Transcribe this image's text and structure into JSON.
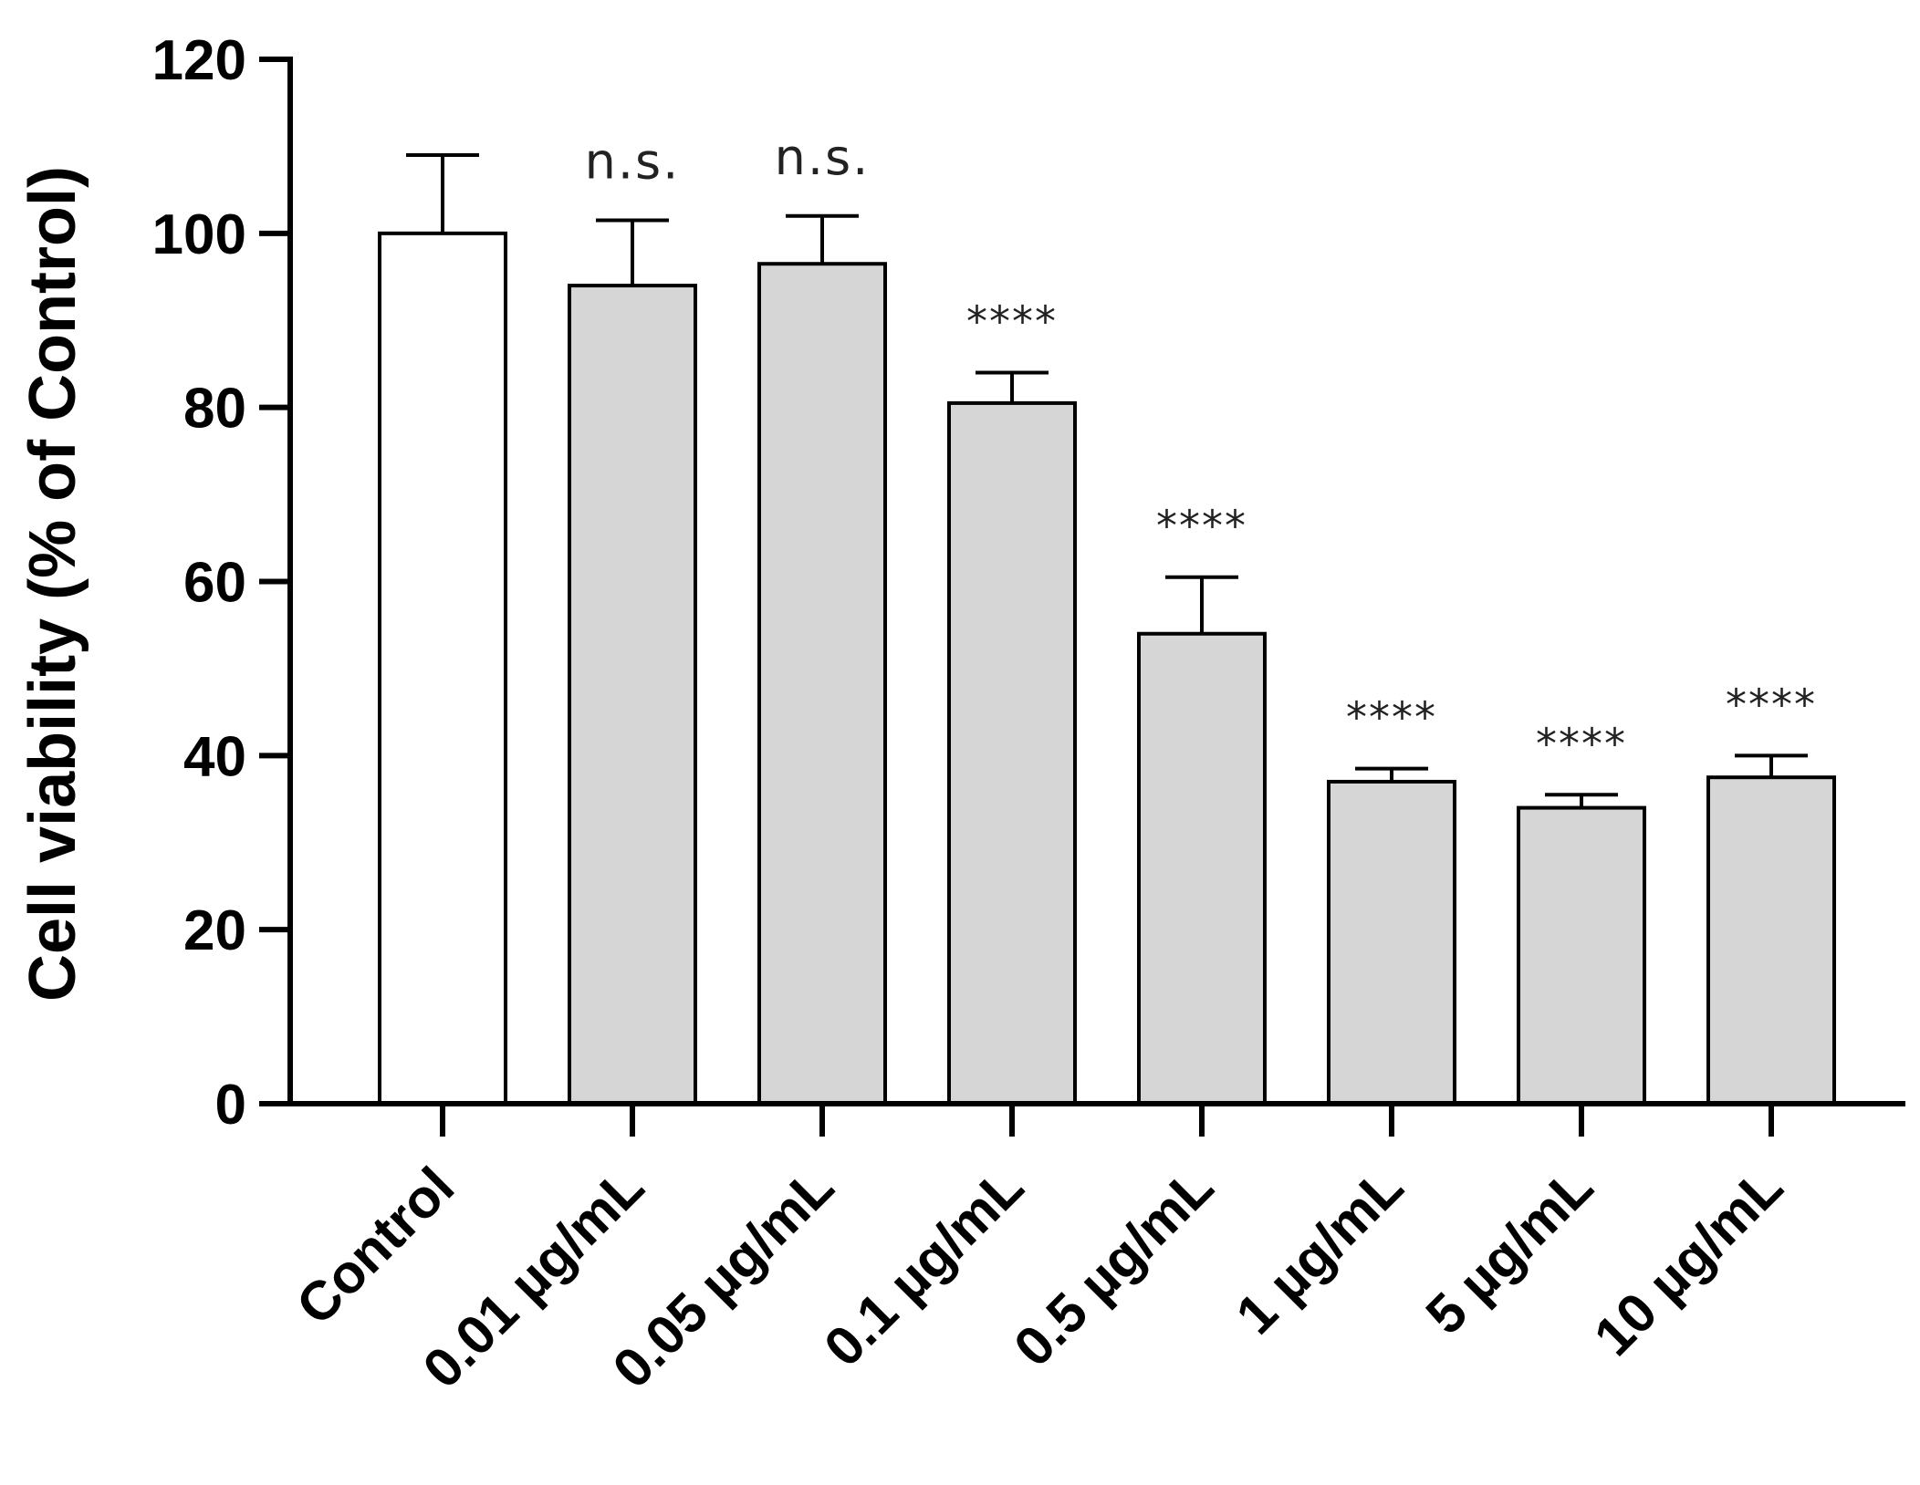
{
  "chart_data": {
    "type": "bar",
    "ylabel": "Cell viability (% of Control)",
    "xlabel": "",
    "ylim": [
      0,
      120
    ],
    "yticks": [
      0,
      20,
      40,
      60,
      80,
      100,
      120
    ],
    "grid": false,
    "legend": "none",
    "categories": [
      "Control",
      "0.01 µg/mL",
      "0.05 µg/mL",
      "0.1 µg/mL",
      "0.5 µg/mL",
      "1 µg/mL",
      "5 µg/mL",
      "10 µg/mL"
    ],
    "values": [
      100,
      94,
      96.5,
      80.5,
      54,
      37,
      34,
      37.5
    ],
    "errors": [
      9,
      7.5,
      5.5,
      3.5,
      6.5,
      1.5,
      1.5,
      2.5
    ],
    "annotations": [
      "",
      "n.s.",
      "n.s.",
      "****",
      "****",
      "****",
      "****",
      "****"
    ],
    "colors": {
      "control_fill": "#ffffff",
      "treated_fill": "#d6d6d6",
      "stroke": "#000000"
    }
  }
}
